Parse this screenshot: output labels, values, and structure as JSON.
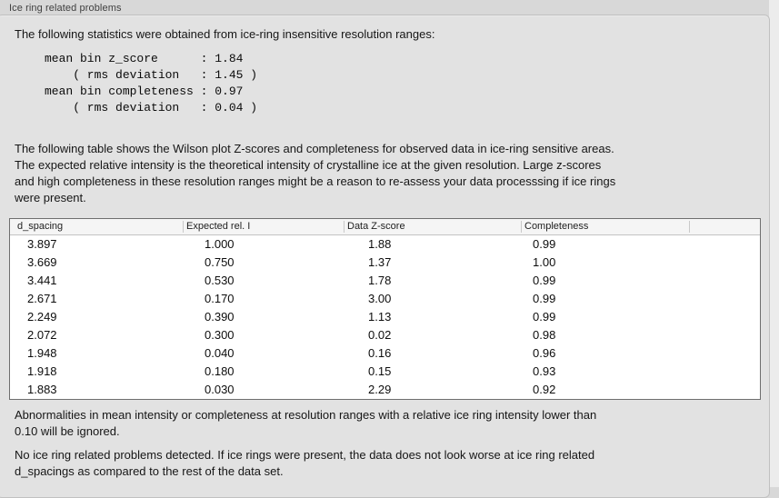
{
  "panel": {
    "title": "Ice ring related problems"
  },
  "intro": {
    "text": "The following statistics were obtained from ice-ring insensitive resolution ranges:",
    "stats_block": "mean bin z_score      : 1.84\n    ( rms deviation   : 1.45 )\nmean bin completeness : 0.97\n    ( rms deviation   : 0.04 )",
    "stats": {
      "mean_bin_z_score": "1.84",
      "z_score_rms_deviation": "1.45",
      "mean_bin_completeness": "0.97",
      "completeness_rms_deviation": "0.04"
    }
  },
  "table_intro": "The following table shows the Wilson plot Z-scores and completeness for observed data in ice-ring sensitive areas.\nThe expected relative intensity is the theoretical intensity of crystalline ice at the given resolution. Large z-scores\nand high completeness in these resolution ranges might be a reason to re-assess your data processsing if ice rings\nwere present.",
  "table": {
    "columns": [
      "d_spacing",
      "Expected rel. I",
      "Data Z-score",
      "Completeness",
      ""
    ],
    "rows": [
      [
        "3.897",
        "1.000",
        "1.88",
        "0.99"
      ],
      [
        "3.669",
        "0.750",
        "1.37",
        "1.00"
      ],
      [
        "3.441",
        "0.530",
        "1.78",
        "0.99"
      ],
      [
        "2.671",
        "0.170",
        "3.00",
        "0.99"
      ],
      [
        "2.249",
        "0.390",
        "1.13",
        "0.99"
      ],
      [
        "2.072",
        "0.300",
        "0.02",
        "0.98"
      ],
      [
        "1.948",
        "0.040",
        "0.16",
        "0.96"
      ],
      [
        "1.918",
        "0.180",
        "0.15",
        "0.93"
      ],
      [
        "1.883",
        "0.030",
        "2.29",
        "0.92"
      ]
    ]
  },
  "notes": {
    "ignore_note": "Abnormalities in mean intensity or completeness at resolution ranges with a relative ice ring intensity lower than\n0.10 will be ignored.",
    "conclusion": "No ice ring related problems detected. If ice rings were present, the data does not look worse at ice ring related\nd_spacings as compared to the rest of the data set."
  },
  "colors": {
    "window_background": "#d8d8d8",
    "panel_background": "#e2e2e2",
    "panel_border": "#c0c0c0",
    "table_border": "#6e6e6e",
    "table_header_background": "#f5f5f5",
    "text": "#161616"
  }
}
